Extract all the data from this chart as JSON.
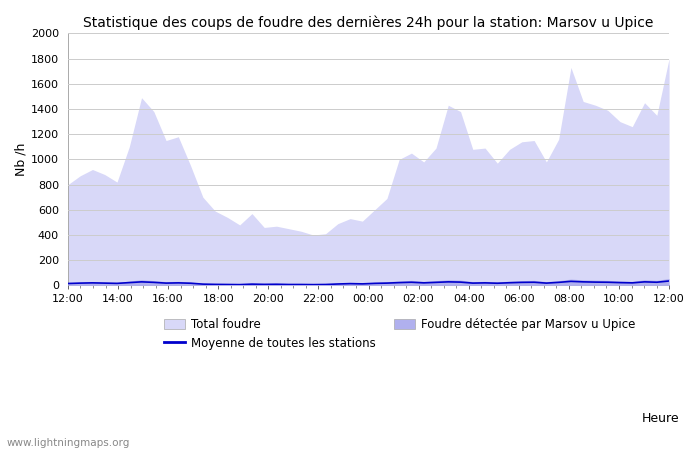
{
  "title": "Statistique des coups de foudre des dernières 24h pour la station: Marsov u Upice",
  "xlabel": "Heure",
  "ylabel": "Nb /h",
  "ylim": [
    0,
    2000
  ],
  "yticks": [
    0,
    200,
    400,
    600,
    800,
    1000,
    1200,
    1400,
    1600,
    1800,
    2000
  ],
  "xtick_labels": [
    "12:00",
    "14:00",
    "16:00",
    "18:00",
    "20:00",
    "22:00",
    "00:00",
    "02:00",
    "04:00",
    "06:00",
    "08:00",
    "10:00",
    "12:00"
  ],
  "bg_color": "#ffffff",
  "plot_bg_color": "#ffffff",
  "grid_color": "#cccccc",
  "fill_total_color": "#d8d8f8",
  "fill_station_color": "#b0b0ee",
  "line_color": "#0000cc",
  "watermark": "www.lightningmaps.org",
  "total_foudre": [
    800,
    870,
    920,
    880,
    820,
    1100,
    1490,
    1380,
    1150,
    1180,
    950,
    700,
    590,
    540,
    480,
    570,
    460,
    470,
    450,
    430,
    400,
    410,
    490,
    530,
    510,
    600,
    690,
    1000,
    1050,
    980,
    1090,
    1430,
    1380,
    1080,
    1090,
    970,
    1080,
    1140,
    1150,
    980,
    1160,
    1730,
    1460,
    1430,
    1390,
    1300,
    1260,
    1450,
    1350,
    1800
  ],
  "station_foudre": [
    20,
    25,
    28,
    26,
    22,
    35,
    45,
    38,
    30,
    32,
    28,
    15,
    12,
    11,
    10,
    16,
    14,
    15,
    13,
    12,
    10,
    11,
    18,
    22,
    20,
    25,
    30,
    35,
    40,
    32,
    38,
    45,
    42,
    30,
    32,
    28,
    34,
    38,
    40,
    30,
    38,
    50,
    44,
    42,
    40,
    35,
    32,
    45,
    40,
    55
  ],
  "mean_line": [
    15,
    18,
    20,
    18,
    16,
    22,
    28,
    24,
    18,
    20,
    17,
    10,
    8,
    7,
    6,
    10,
    8,
    9,
    7,
    7,
    6,
    7,
    11,
    14,
    12,
    16,
    18,
    22,
    25,
    20,
    24,
    28,
    26,
    18,
    20,
    17,
    21,
    24,
    25,
    18,
    24,
    32,
    28,
    26,
    25,
    22,
    20,
    28,
    25,
    35
  ],
  "legend_total_label": "Total foudre",
  "legend_mean_label": "Moyenne de toutes les stations",
  "legend_station_label": "Foudre détectée par Marsov u Upice"
}
